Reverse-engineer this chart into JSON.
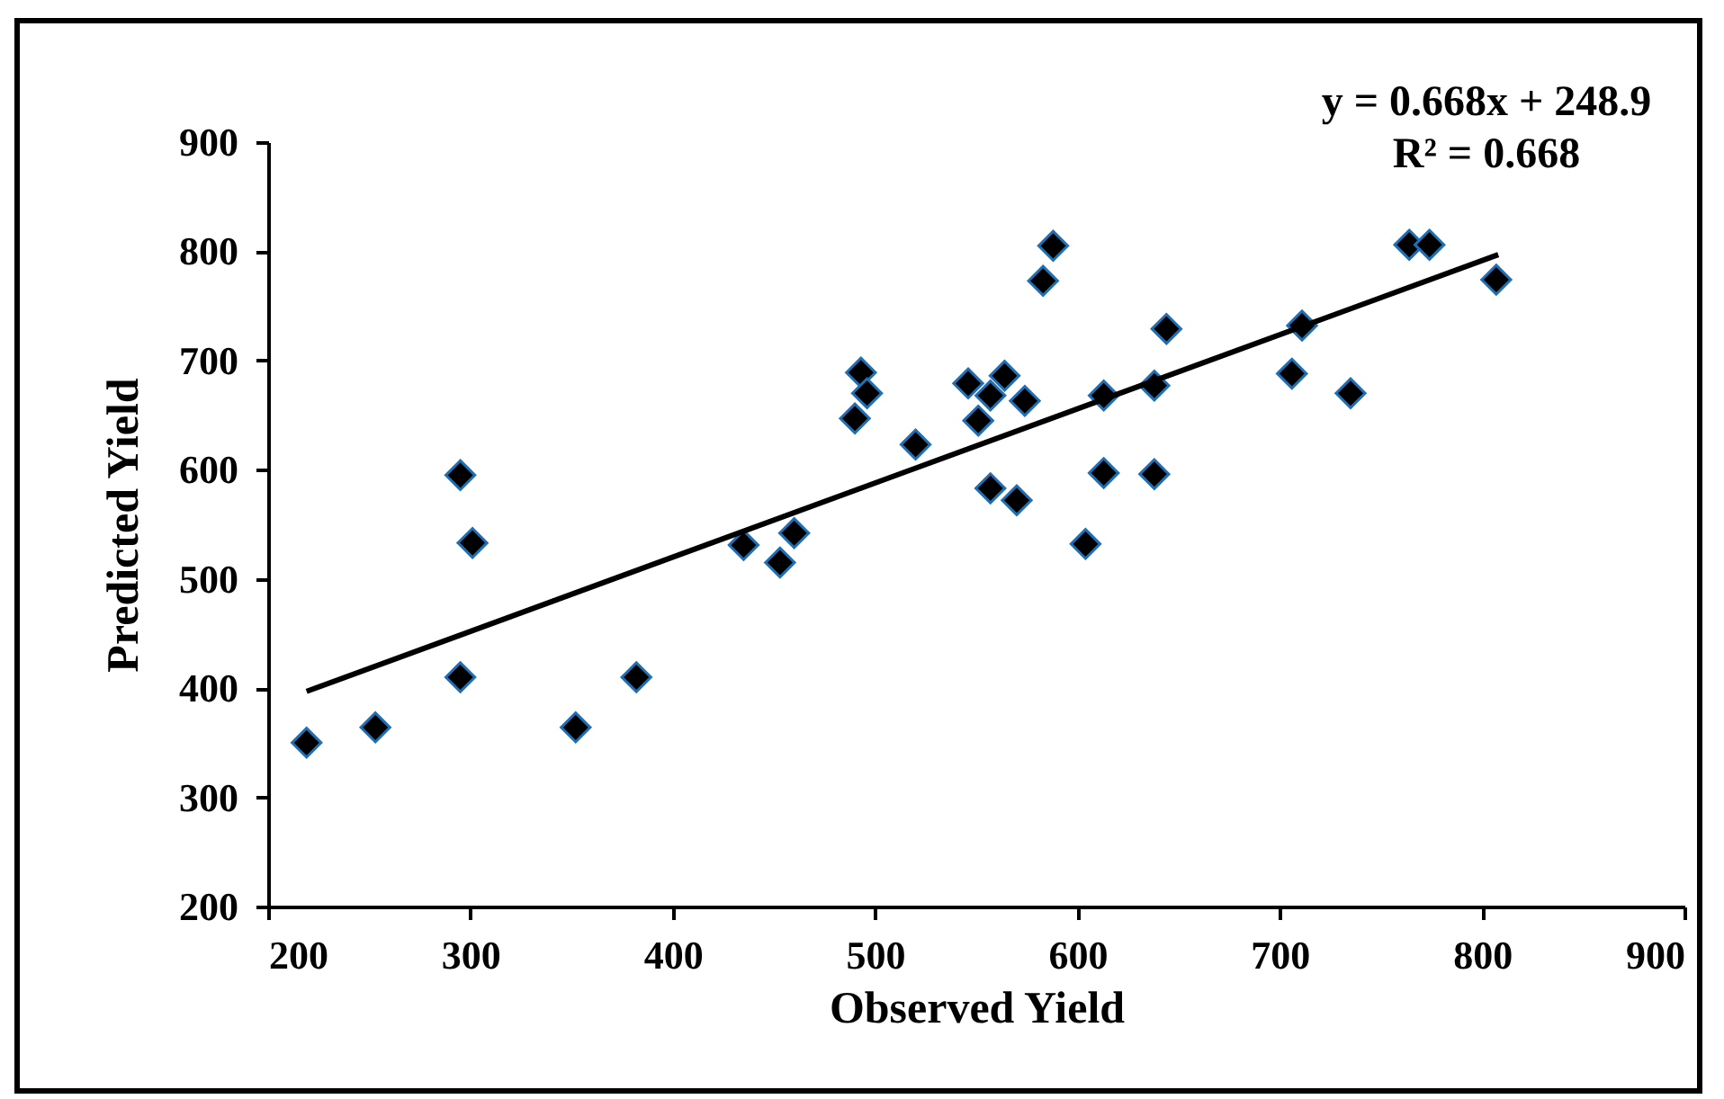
{
  "chart_data": {
    "type": "scatter",
    "xlabel": "Observed Yield",
    "ylabel": "Predicted Yield",
    "xlim": [
      200,
      900
    ],
    "xticks": [
      200,
      300,
      400,
      500,
      600,
      700,
      800,
      900
    ],
    "ylim": [
      200,
      900
    ],
    "yticks": [
      200,
      300,
      400,
      500,
      600,
      700,
      800,
      900
    ],
    "marker": "diamond",
    "grid": false,
    "annotations": [
      "y = 0.668x + 248.9",
      "R² = 0.668"
    ],
    "series": [
      {
        "color": "#000000",
        "x": [
          219,
          253,
          295,
          301,
          295,
          352,
          382,
          435,
          460,
          453,
          493,
          496,
          490,
          520,
          546,
          551,
          557,
          564,
          574,
          588,
          583,
          557,
          570,
          604,
          613,
          613,
          638,
          638,
          644,
          711,
          706,
          735,
          764,
          774,
          807
        ],
        "values": [
          350,
          364,
          595,
          533,
          410,
          364,
          410,
          531,
          542,
          515,
          689,
          670,
          647,
          623,
          679,
          645,
          668,
          686,
          663,
          805,
          773,
          583,
          572,
          532,
          668,
          597,
          677,
          596,
          729,
          732,
          688,
          670,
          806,
          806,
          774
        ]
      },
      {
        "type": "line",
        "marker": "none",
        "color": "#000000",
        "x": [
          219,
          808
        ],
        "values": [
          397,
          797
        ]
      }
    ]
  }
}
